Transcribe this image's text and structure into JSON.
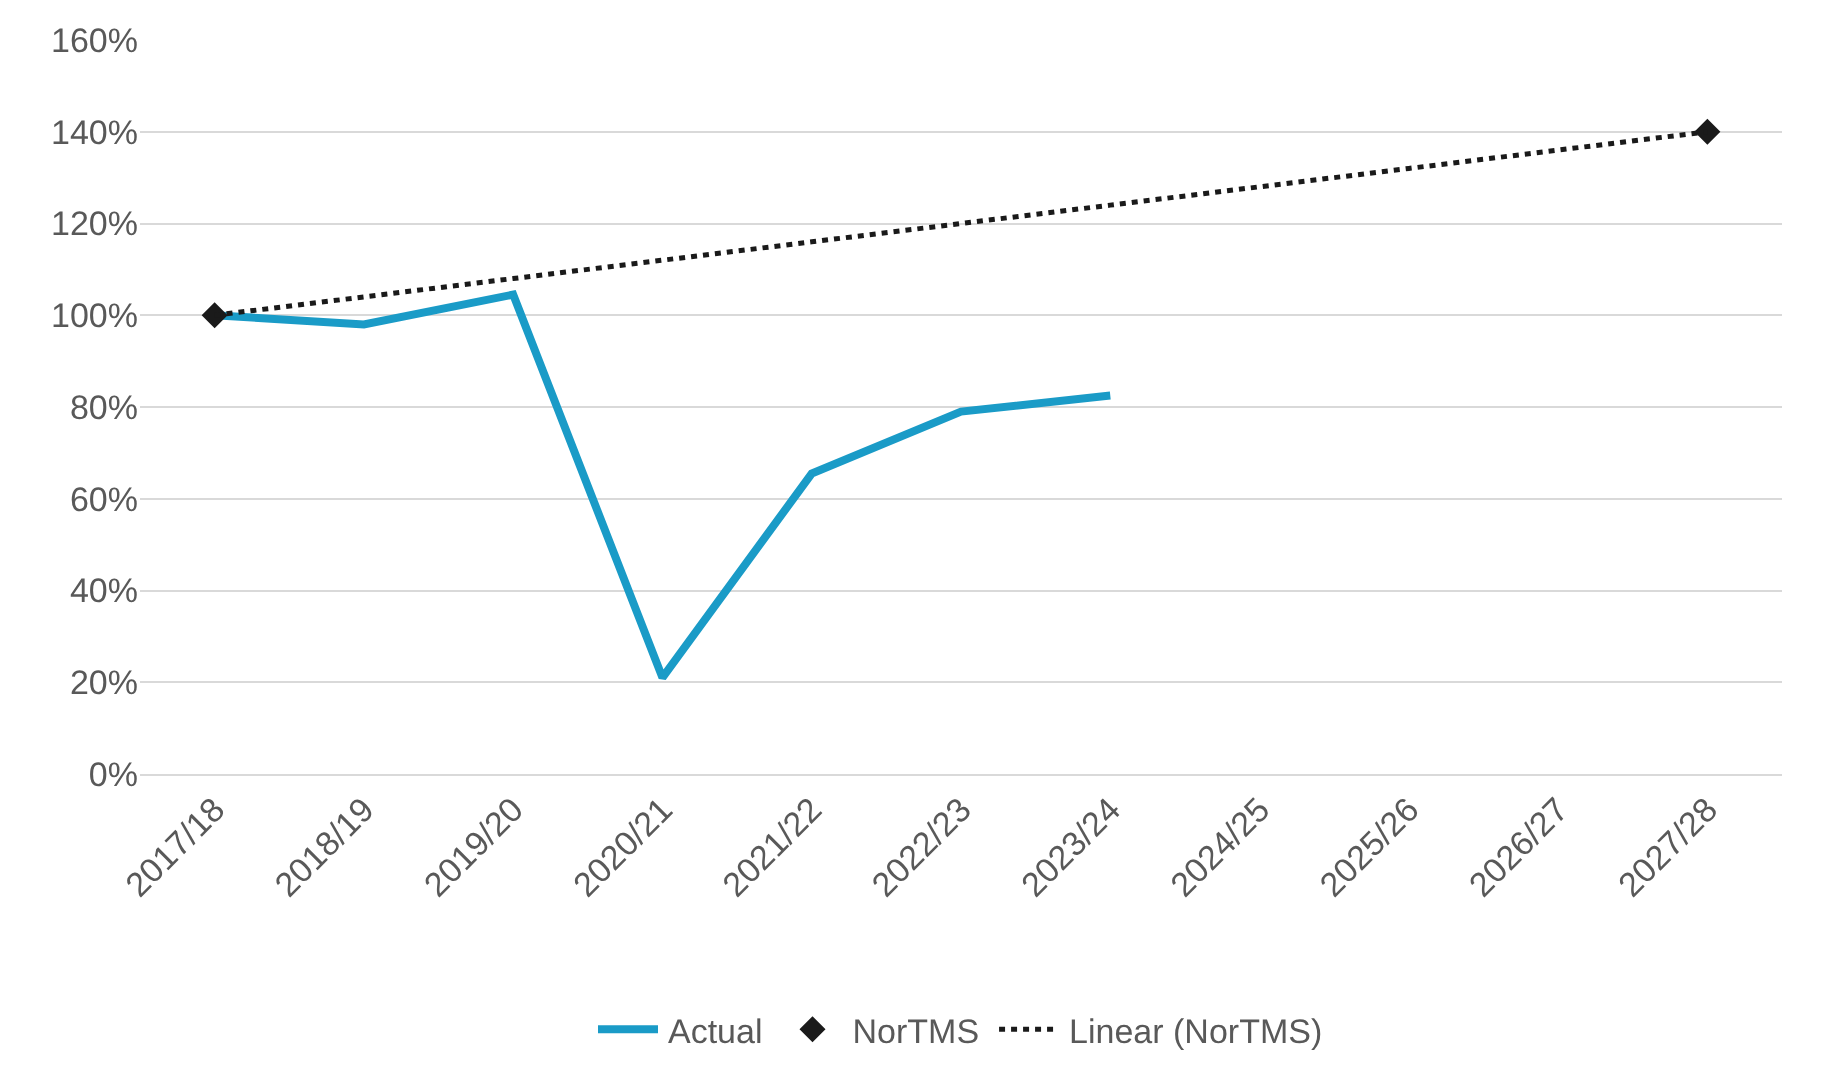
{
  "chart_data": {
    "type": "line",
    "categories": [
      "2017/18",
      "2018/19",
      "2019/20",
      "2020/21",
      "2021/22",
      "2022/23",
      "2023/24",
      "2024/25",
      "2025/26",
      "2026/27",
      "2027/28"
    ],
    "series": [
      {
        "name": "Actual",
        "color": "#1a9bc7",
        "marker": "none",
        "line_style": "solid",
        "values": [
          100,
          98,
          104.5,
          21,
          65.5,
          79,
          82.5,
          null,
          null,
          null,
          null
        ]
      },
      {
        "name": "NorTMS",
        "type": "scatter",
        "color": "#1a1a1a",
        "marker": "diamond",
        "values": [
          100,
          null,
          null,
          null,
          null,
          null,
          null,
          null,
          null,
          null,
          140
        ]
      },
      {
        "name": "Linear (NorTMS)",
        "color": "#1a1a1a",
        "marker": "none",
        "line_style": "dotted",
        "values": [
          100,
          104,
          108,
          112,
          116,
          120,
          124,
          128,
          132,
          136,
          140
        ]
      }
    ],
    "ylim": [
      0,
      160
    ],
    "yticks": [
      {
        "value": 0,
        "label": "0%"
      },
      {
        "value": 20,
        "label": "20%"
      },
      {
        "value": 40,
        "label": "40%"
      },
      {
        "value": 60,
        "label": "60%"
      },
      {
        "value": 80,
        "label": "80%"
      },
      {
        "value": 100,
        "label": "100%"
      },
      {
        "value": 120,
        "label": "120%"
      },
      {
        "value": 140,
        "label": "140%"
      },
      {
        "value": 160,
        "label": "160%"
      }
    ],
    "grid": "y",
    "legend": "bottom"
  }
}
